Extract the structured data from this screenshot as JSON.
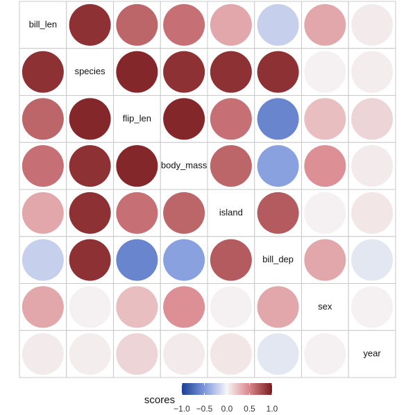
{
  "chart_data": {
    "type": "corrplot",
    "categories": [
      "bill_len",
      "species",
      "flip_len",
      "body_mass",
      "island",
      "bill_dep",
      "sex",
      "year"
    ],
    "values": [
      [
        null,
        0.9,
        0.65,
        0.6,
        0.35,
        -0.2,
        0.35,
        0.05
      ],
      [
        0.9,
        null,
        0.95,
        0.9,
        0.9,
        0.9,
        0.02,
        0.04
      ],
      [
        0.65,
        0.95,
        null,
        0.95,
        0.6,
        -0.6,
        0.25,
        0.15
      ],
      [
        0.6,
        0.9,
        0.95,
        null,
        0.65,
        -0.45,
        0.45,
        0.05
      ],
      [
        0.35,
        0.9,
        0.6,
        0.65,
        null,
        0.7,
        0.02,
        0.07
      ],
      [
        -0.2,
        0.9,
        -0.6,
        -0.45,
        0.7,
        null,
        0.35,
        -0.08
      ],
      [
        0.35,
        0.02,
        0.25,
        0.45,
        0.02,
        0.35,
        null,
        0.02
      ],
      [
        0.05,
        0.04,
        0.15,
        0.05,
        0.07,
        -0.08,
        0.02,
        null
      ]
    ],
    "legend_title": "scores",
    "clim": [
      -1,
      1
    ],
    "cticks": [
      {
        "value": -1,
        "label": "−1.0"
      },
      {
        "value": -0.5,
        "label": "−0.5"
      },
      {
        "value": 0,
        "label": "0.0"
      },
      0.5,
      {
        "value": 1,
        "label": "1.0"
      }
    ],
    "colorscale": [
      [
        -1,
        "#1a3f94"
      ],
      [
        -0.5,
        "#7d97dc"
      ],
      [
        0,
        "#f6f6f6"
      ],
      [
        0.5,
        "#d9858a"
      ],
      [
        1,
        "#7a1c1f"
      ]
    ]
  }
}
